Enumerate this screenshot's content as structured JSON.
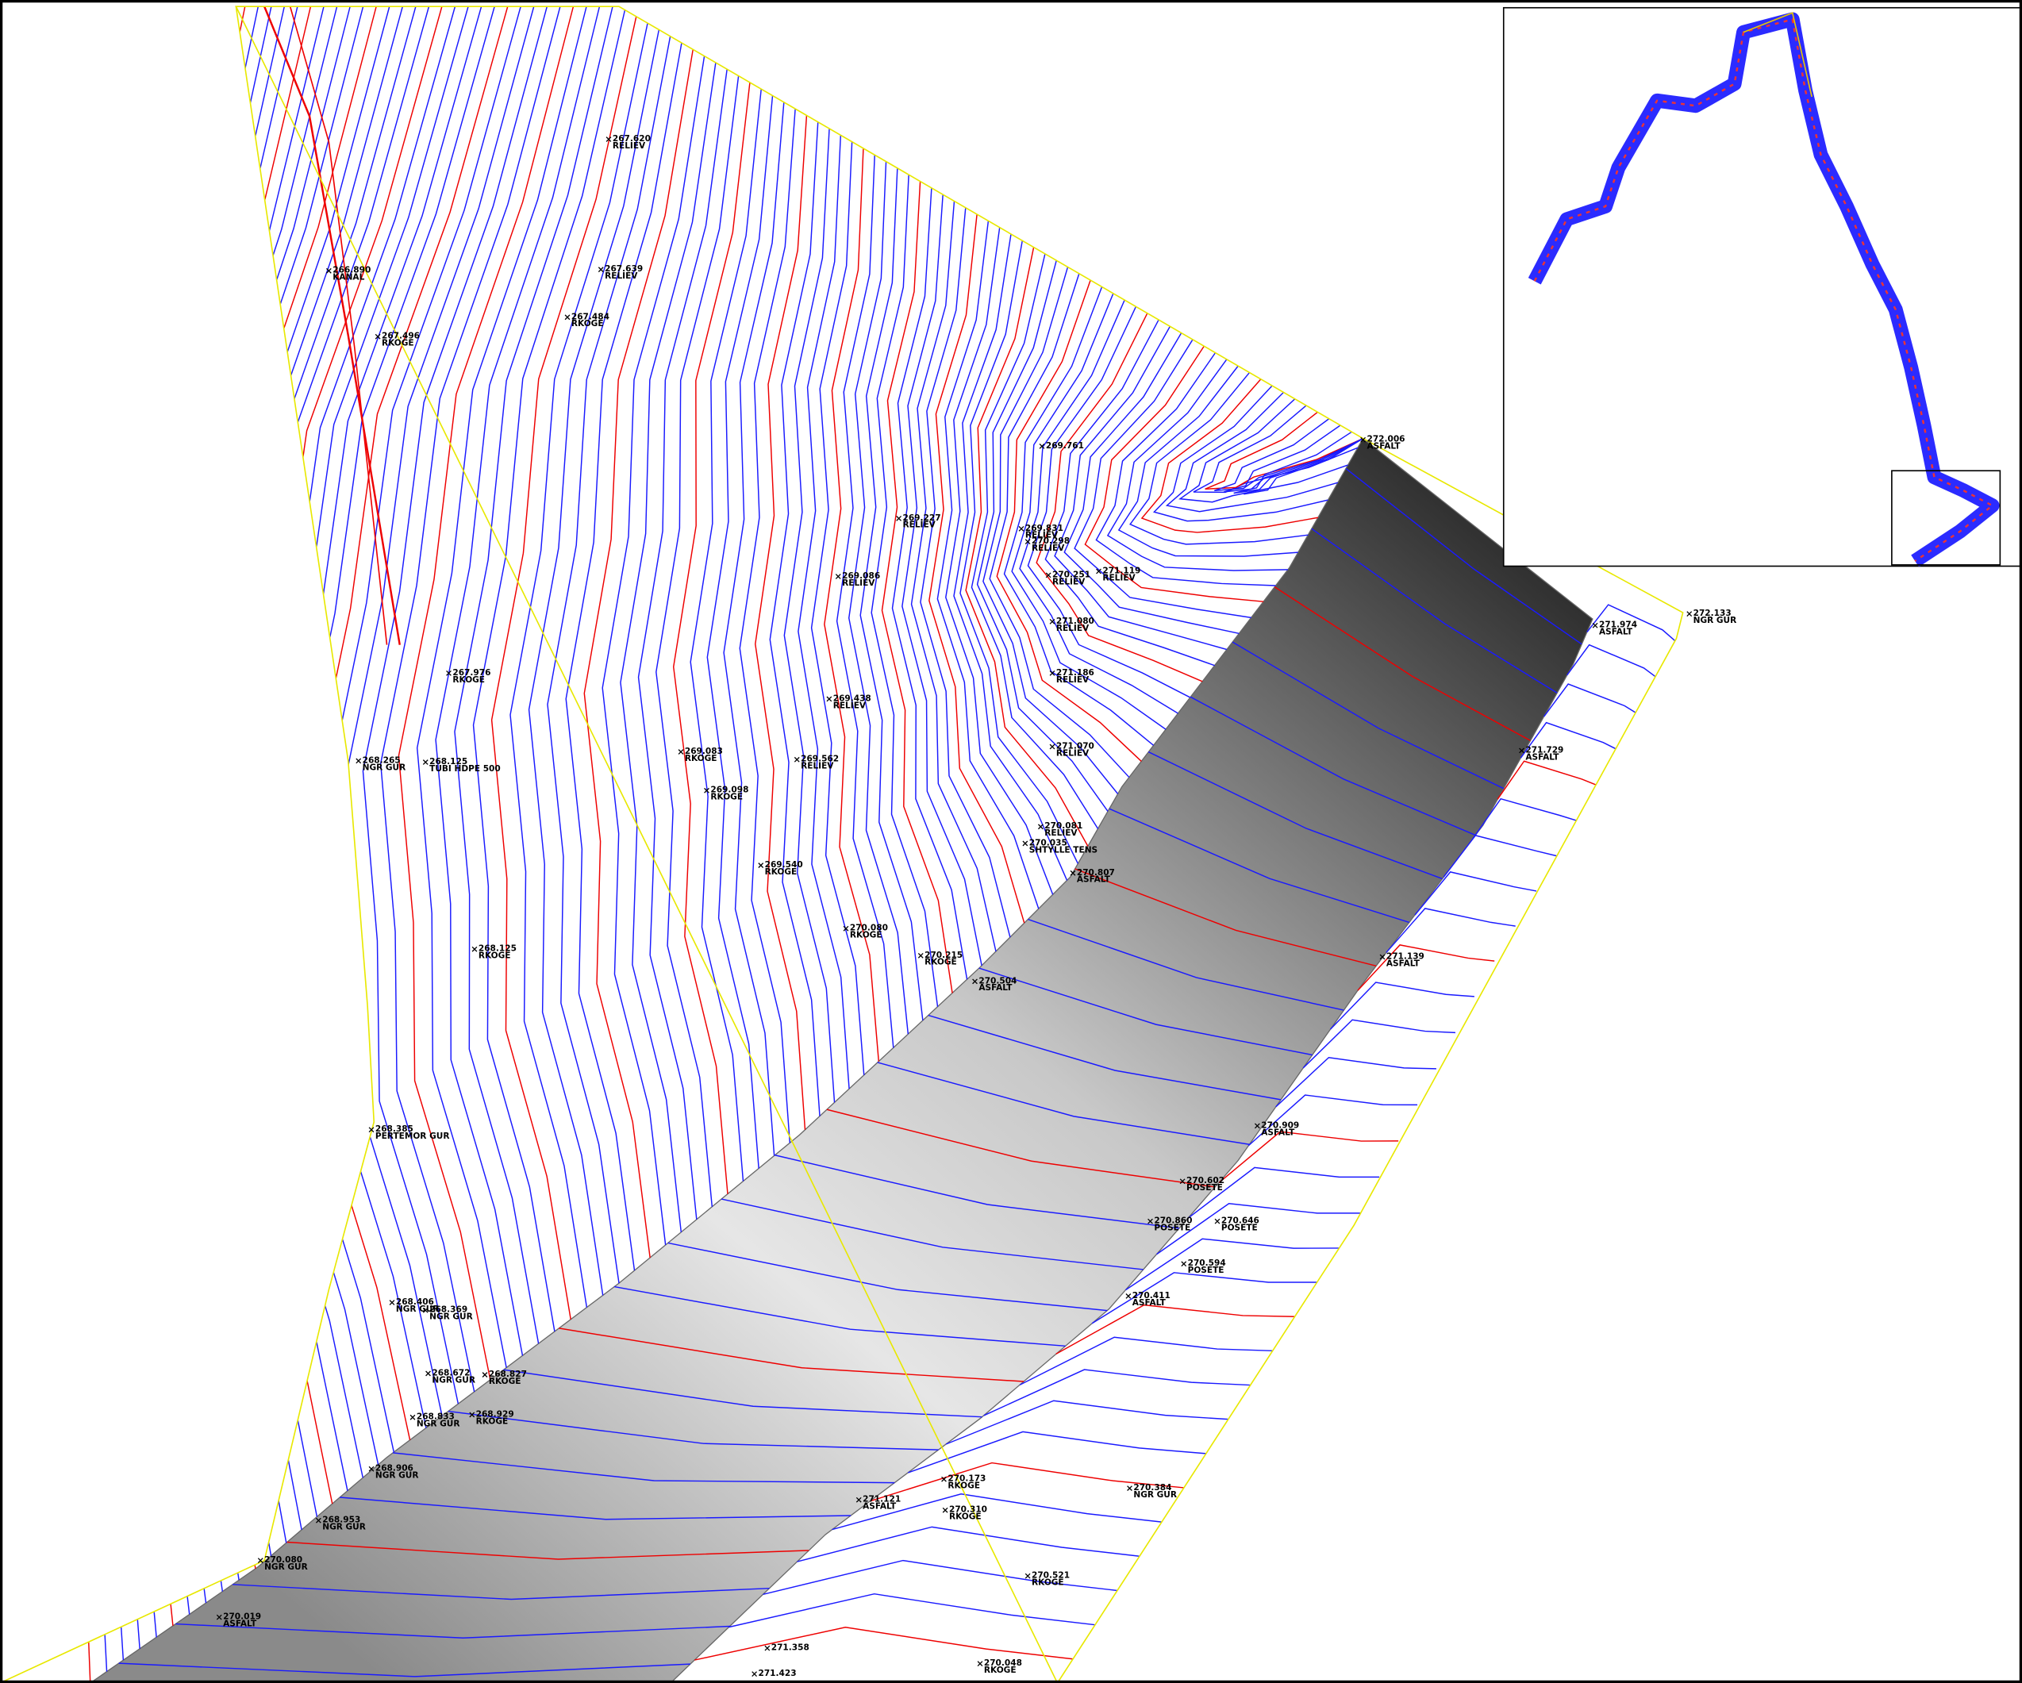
{
  "points": [
    {
      "elevation": "267.620",
      "code": "RELIEV"
    },
    {
      "elevation": "267.639",
      "code": "RELIEV"
    },
    {
      "elevation": "267.484",
      "code": "RKOGE"
    },
    {
      "elevation": "267.496",
      "code": "RKOGE"
    },
    {
      "elevation": "266.890",
      "code": "KANAL"
    },
    {
      "elevation": "267.976",
      "code": "RKOGE"
    },
    {
      "elevation": "269.761"
    },
    {
      "elevation": "269.227",
      "code": "RELIEV"
    },
    {
      "elevation": "269.831",
      "code": "RELIEV"
    },
    {
      "elevation": "270.298",
      "code": "RELIEV"
    },
    {
      "elevation": "269.086",
      "code": "RELIEV"
    },
    {
      "elevation": "270.251",
      "code": "RELIEV"
    },
    {
      "elevation": "271.119",
      "code": "RELIEV"
    },
    {
      "elevation": "271.080",
      "code": "RELIEV"
    },
    {
      "elevation": "271.186",
      "code": "RELIEV"
    },
    {
      "elevation": "271.070",
      "code": "RELIEV"
    },
    {
      "elevation": "269.438",
      "code": "RELIEV"
    },
    {
      "elevation": "269.083",
      "code": "RKOGE"
    },
    {
      "elevation": "269.562",
      "code": "RELIEV"
    },
    {
      "elevation": "269.098",
      "code": "RKOGE"
    },
    {
      "elevation": "270.081",
      "code": "RELIEV"
    },
    {
      "elevation": "270.035",
      "code": "SHTYLLE TENS"
    },
    {
      "elevation": "270.807",
      "code": "ASFALT"
    },
    {
      "elevation": "269.540",
      "code": "RKOGE"
    },
    {
      "elevation": "268.125",
      "code": "RKOGE"
    },
    {
      "elevation": "270.080",
      "code": "RKOGE"
    },
    {
      "elevation": "270.215",
      "code": "RKOGE"
    },
    {
      "elevation": "270.504",
      "code": "ASFALT"
    },
    {
      "elevation": "271.139",
      "code": "ASFALT"
    },
    {
      "elevation": "271.729",
      "code": "ASFALT"
    },
    {
      "elevation": "271.974",
      "code": "ASFALT"
    },
    {
      "elevation": "272.133",
      "code": "NGR GUR"
    },
    {
      "elevation": "272.006",
      "code": "ASFALT"
    },
    {
      "elevation": "270.909",
      "code": "ASFALT"
    },
    {
      "elevation": "270.602",
      "code": "POSETE"
    },
    {
      "elevation": "270.860",
      "code": "POSETE"
    },
    {
      "elevation": "270.646",
      "code": "POSETE"
    },
    {
      "elevation": "270.594",
      "code": "POSETE"
    },
    {
      "elevation": "270.411",
      "code": "ASFALT"
    },
    {
      "elevation": "268.406",
      "code": "NGR GUR"
    },
    {
      "elevation": "268.369",
      "code": "NGR GUR"
    },
    {
      "elevation": "268.672",
      "code": "NGR GUR"
    },
    {
      "elevation": "268.827",
      "code": "RKOGE"
    },
    {
      "elevation": "268.833",
      "code": "NGR GUR"
    },
    {
      "elevation": "268.929",
      "code": "RKOGE"
    },
    {
      "elevation": "268.906",
      "code": "NGR GUR"
    },
    {
      "elevation": "268.953",
      "code": "NGR GUR"
    },
    {
      "elevation": "270.080",
      "code": "NGR GUR"
    },
    {
      "elevation": "270.019",
      "code": "ASFALT"
    },
    {
      "elevation": "270.173",
      "code": "RKOGE"
    },
    {
      "elevation": "271.121",
      "code": "ASFALT"
    },
    {
      "elevation": "270.310",
      "code": "RKOGE"
    },
    {
      "elevation": "270.384",
      "code": "NGR GUR"
    },
    {
      "elevation": "270.521",
      "code": "RKOGE"
    },
    {
      "elevation": "270.048",
      "code": "RKOGE"
    },
    {
      "elevation": "271.358"
    },
    {
      "elevation": "271.423"
    },
    {
      "elevation": "268.265",
      "code": "NGR GUR"
    },
    {
      "elevation": "268.125",
      "code": "TUBI HDPE 500"
    },
    {
      "elevation": "268.385",
      "code": "PERTEMOR GUR"
    }
  ]
}
